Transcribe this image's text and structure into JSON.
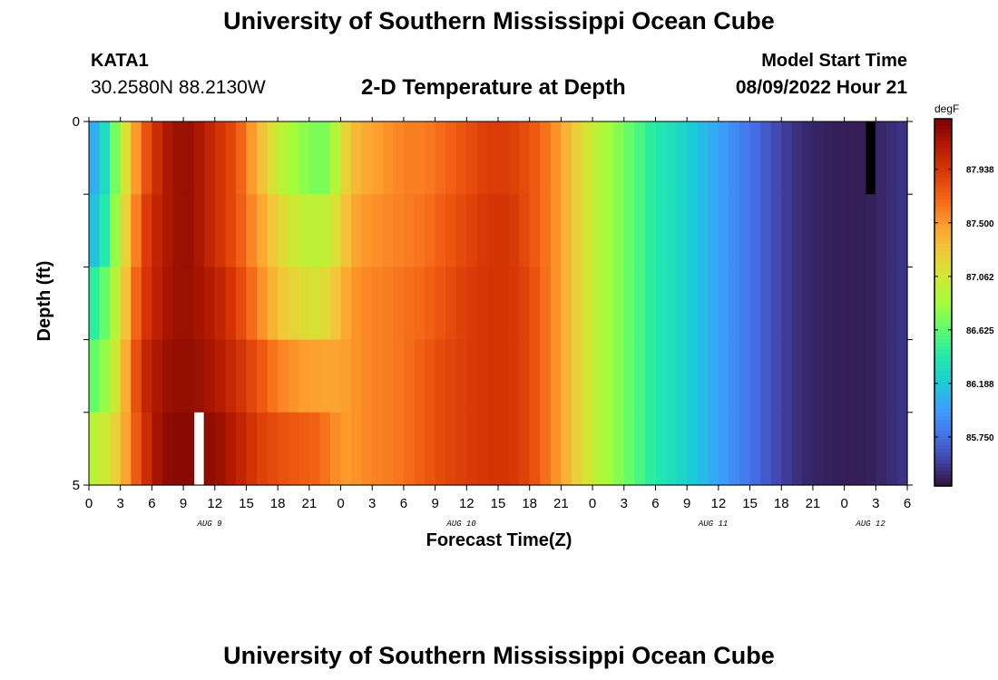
{
  "header": {
    "title": "University of Southern Mississippi Ocean Cube",
    "station": "KATA1",
    "coordinates": "30.2580N  88.2130W",
    "subtitle": "2-D Temperature at Depth",
    "model_start_label": "Model Start Time",
    "model_start_value": "08/09/2022 Hour 21"
  },
  "footer": {
    "title": "University of Southern Mississippi Ocean Cube"
  },
  "colors": {
    "colormap": [
      "#30123b",
      "#4145ab",
      "#4675ed",
      "#39a2fc",
      "#1bcfd4",
      "#24eca6",
      "#61fc6c",
      "#a4fc3b",
      "#d1e834",
      "#f3c63a",
      "#fe9b2d",
      "#f36315",
      "#d93806",
      "#b11901",
      "#7a0402"
    ],
    "missing_white": "#ffffff",
    "missing_black": "#000000"
  },
  "chart_data": {
    "type": "heatmap",
    "title": "2-D Temperature at Depth",
    "xlabel": "Forecast Time(Z)",
    "ylabel": "Depth (ft)",
    "x_tick_labels": [
      "0",
      "3",
      "6",
      "9",
      "12",
      "15",
      "18",
      "21",
      "0",
      "3",
      "6",
      "9",
      "12",
      "15",
      "18",
      "21",
      "0",
      "3",
      "6",
      "9",
      "12",
      "15",
      "18",
      "21",
      "0",
      "3",
      "6"
    ],
    "x_hours": [
      0,
      3,
      6,
      9,
      12,
      15,
      18,
      21,
      24,
      27,
      30,
      33,
      36,
      39,
      42,
      45,
      48,
      51,
      54,
      57,
      60,
      63,
      66,
      69,
      72,
      75,
      78
    ],
    "day_labels": [
      {
        "label": "AUG 9",
        "hour": 11.5
      },
      {
        "label": "AUG 10",
        "hour": 35.5
      },
      {
        "label": "AUG 11",
        "hour": 59.5
      },
      {
        "label": "AUG 12",
        "hour": 74.5
      }
    ],
    "y_tick_labels": [
      "0",
      "5"
    ],
    "ylim": [
      0,
      5
    ],
    "xlim": [
      0,
      78
    ],
    "depth_layers": [
      0,
      1,
      2,
      3,
      4,
      5
    ],
    "colorbar": {
      "units": "degF",
      "tick_labels": [
        "87.938",
        "87.500",
        "87.062",
        "86.625",
        "86.188",
        "85.750"
      ],
      "tick_values": [
        87.938,
        87.5,
        87.062,
        86.625,
        86.188,
        85.75
      ],
      "range": [
        85.35,
        88.35
      ]
    },
    "time_keyframes_hours": [
      0,
      1,
      2,
      3,
      4,
      5,
      6,
      7,
      8,
      9,
      10,
      12,
      14,
      16,
      18,
      20,
      22,
      23,
      24,
      25,
      26,
      28,
      30,
      32,
      34,
      36,
      38,
      40,
      42,
      44,
      46,
      48,
      50,
      52,
      54,
      56,
      58,
      60,
      62,
      64,
      66,
      68,
      70,
      72,
      74,
      76,
      78
    ],
    "temperature_keyframes": [
      [
        86.0,
        86.1,
        86.5,
        86.9,
        87.3,
        87.7,
        87.9,
        88.1,
        88.2,
        88.25,
        88.2,
        88.0,
        87.8,
        87.4,
        87.0,
        86.8,
        86.7,
        86.75,
        87.1,
        87.3,
        87.4,
        87.5,
        87.6,
        87.6,
        87.7,
        87.8,
        87.9,
        87.9,
        87.8,
        87.6,
        87.3,
        87.0,
        86.8,
        86.6,
        86.4,
        86.3,
        86.15,
        86.0,
        85.85,
        85.7,
        85.55,
        85.45,
        85.42,
        85.4,
        85.4,
        85.45,
        85.5
      ],
      [
        86.1,
        86.2,
        86.6,
        87.0,
        87.4,
        87.8,
        88.0,
        88.1,
        88.2,
        88.25,
        88.2,
        88.0,
        87.8,
        87.5,
        87.2,
        87.0,
        86.95,
        87.0,
        87.2,
        87.4,
        87.5,
        87.55,
        87.6,
        87.65,
        87.75,
        87.85,
        87.95,
        87.95,
        87.8,
        87.6,
        87.3,
        87.0,
        86.8,
        86.6,
        86.4,
        86.3,
        86.15,
        86.0,
        85.85,
        85.7,
        85.55,
        85.45,
        85.42,
        85.4,
        85.4,
        85.45,
        85.5
      ],
      [
        86.4,
        86.5,
        86.8,
        87.1,
        87.5,
        87.9,
        88.0,
        88.15,
        88.2,
        88.25,
        88.2,
        88.1,
        87.9,
        87.6,
        87.3,
        87.15,
        87.1,
        87.2,
        87.35,
        87.5,
        87.55,
        87.6,
        87.65,
        87.7,
        87.8,
        87.9,
        87.95,
        87.95,
        87.85,
        87.6,
        87.3,
        87.0,
        86.8,
        86.6,
        86.4,
        86.3,
        86.15,
        86.0,
        85.85,
        85.7,
        85.55,
        85.45,
        85.42,
        85.4,
        85.4,
        85.45,
        85.5
      ],
      [
        86.6,
        86.7,
        86.9,
        87.2,
        87.6,
        88.0,
        88.1,
        88.2,
        88.25,
        88.25,
        88.25,
        88.15,
        88.0,
        87.8,
        87.6,
        87.5,
        87.45,
        87.45,
        87.45,
        87.5,
        87.55,
        87.6,
        87.65,
        87.75,
        87.85,
        87.9,
        87.95,
        87.95,
        87.85,
        87.6,
        87.3,
        87.0,
        86.8,
        86.6,
        86.4,
        86.3,
        86.15,
        86.0,
        85.85,
        85.7,
        85.55,
        85.45,
        85.42,
        85.4,
        85.4,
        85.45,
        85.5
      ],
      [
        86.9,
        87.0,
        87.1,
        87.3,
        87.6,
        87.9,
        88.1,
        88.25,
        88.3,
        88.3,
        88.3,
        88.25,
        88.1,
        87.9,
        87.8,
        87.75,
        87.7,
        87.6,
        87.5,
        87.5,
        87.55,
        87.6,
        87.65,
        87.75,
        87.85,
        87.9,
        87.95,
        87.95,
        87.85,
        87.6,
        87.3,
        87.0,
        86.8,
        86.6,
        86.4,
        86.3,
        86.15,
        86.0,
        85.85,
        85.7,
        85.55,
        85.45,
        85.42,
        85.4,
        85.4,
        85.45,
        85.5
      ]
    ],
    "missing_cells": [
      {
        "hour": 10.5,
        "layer": 4,
        "color": "white"
      },
      {
        "hour": 74.5,
        "layer": 0,
        "color": "black"
      }
    ]
  }
}
